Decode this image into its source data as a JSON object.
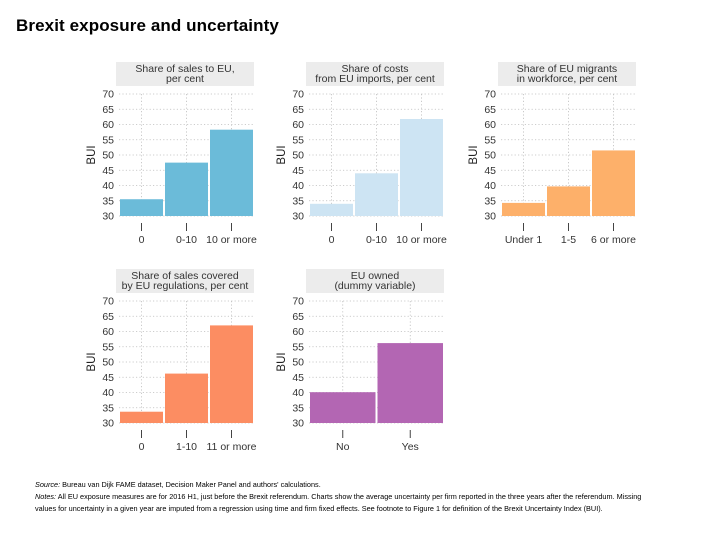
{
  "title": "Brexit exposure and uncertainty",
  "chart_data": [
    {
      "type": "bar",
      "title": [
        "Share of sales to EU,",
        "per cent"
      ],
      "categories": [
        "0",
        "0-10",
        "10 or more"
      ],
      "values": [
        35.5,
        47.5,
        58.3
      ],
      "ylabel": "BUI",
      "xlabel": "",
      "ylim": [
        30,
        70
      ],
      "yticks": [
        30,
        35,
        40,
        45,
        50,
        55,
        60,
        65,
        70
      ],
      "grid": true,
      "color": "#6bbbd9"
    },
    {
      "type": "bar",
      "title": [
        "Share of costs",
        "from EU imports, per cent"
      ],
      "categories": [
        "0",
        "0-10",
        "10 or more"
      ],
      "values": [
        34.0,
        44.0,
        61.8
      ],
      "ylabel": "BUI",
      "xlabel": "",
      "ylim": [
        30,
        70
      ],
      "yticks": [
        30,
        35,
        40,
        45,
        50,
        55,
        60,
        65,
        70
      ],
      "grid": true,
      "color": "#cde4f3"
    },
    {
      "type": "bar",
      "title": [
        "Share of EU migrants",
        "in workforce, per cent"
      ],
      "categories": [
        "Under 1",
        "1-5",
        "6 or more"
      ],
      "values": [
        34.3,
        39.7,
        51.5
      ],
      "ylabel": "BUI",
      "xlabel": "",
      "ylim": [
        30,
        70
      ],
      "yticks": [
        30,
        35,
        40,
        45,
        50,
        55,
        60,
        65,
        70
      ],
      "grid": true,
      "color": "#fdb06a"
    },
    {
      "type": "bar",
      "title": [
        "Share of sales covered",
        "by EU regulations, per cent"
      ],
      "categories": [
        "0",
        "1-10",
        "11 or more"
      ],
      "values": [
        33.7,
        46.2,
        62.0
      ],
      "ylabel": "BUI",
      "xlabel": "",
      "ylim": [
        30,
        70
      ],
      "yticks": [
        30,
        35,
        40,
        45,
        50,
        55,
        60,
        65,
        70
      ],
      "grid": true,
      "color": "#fc8d62"
    },
    {
      "type": "bar",
      "title": [
        "EU owned",
        "(dummy variable)"
      ],
      "categories": [
        "No",
        "Yes"
      ],
      "values": [
        40.1,
        56.2
      ],
      "ylabel": "BUI",
      "xlabel": "",
      "ylim": [
        30,
        70
      ],
      "yticks": [
        30,
        35,
        40,
        45,
        50,
        55,
        60,
        65,
        70
      ],
      "grid": true,
      "color": "#b366b3"
    }
  ],
  "footnotes": {
    "source_label": "Source:",
    "source_text": " Bureau van Dijk FAME dataset, Decision Maker Panel and authors' calculations.",
    "notes_label": "Notes:",
    "notes_text": " All EU exposure measures are for 2016 H1, just before the Brexit referendum. Charts show the average uncertainty per firm reported in the three years after the referendum. Missing values for uncertainty in a given year are imputed from a regression using time and firm fixed effects. See footnote to Figure 1 for definition of the Brexit Uncertainty Index (BUI)."
  }
}
